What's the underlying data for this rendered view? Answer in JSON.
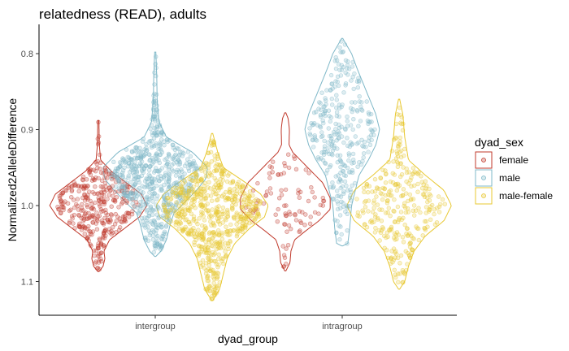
{
  "chart_data": {
    "type": "violin",
    "title": "relatedness (READ), adults",
    "xlabel": "dyad_group",
    "ylabel": "Normalized2AlleleDifference",
    "y_reversed": true,
    "ylim": [
      0.765,
      1.14
    ],
    "yticks": [
      0.8,
      0.9,
      1.0,
      1.1
    ],
    "ytick_labels": [
      "0.8",
      "0.9",
      "1.0",
      "1.1"
    ],
    "categories": [
      "intergroup",
      "intragroup"
    ],
    "grid": false,
    "legend": {
      "title": "dyad_sex",
      "position": "right",
      "entries": [
        "female",
        "male",
        "male-female"
      ]
    },
    "series": [
      {
        "name": "female",
        "color": "#C0392B",
        "groups": [
          {
            "category": "intergroup",
            "n_points": 350,
            "profile": [
              [
                0.888,
                0.3
              ],
              [
                0.92,
                0.5
              ],
              [
                0.94,
                1.2
              ],
              [
                0.955,
                7
              ],
              [
                0.97,
                15
              ],
              [
                0.985,
                23
              ],
              [
                1.0,
                26
              ],
              [
                1.015,
                22
              ],
              [
                1.03,
                14
              ],
              [
                1.045,
                6
              ],
              [
                1.06,
                3
              ],
              [
                1.07,
                3.5
              ],
              [
                1.08,
                2.5
              ],
              [
                1.087,
                0.3
              ]
            ]
          },
          {
            "category": "intragroup",
            "n_points": 90,
            "profile": [
              [
                0.878,
                0.3
              ],
              [
                0.885,
                1.5
              ],
              [
                0.9,
                2.2
              ],
              [
                0.92,
                2
              ],
              [
                0.93,
                4
              ],
              [
                0.95,
                12
              ],
              [
                0.97,
                20
              ],
              [
                0.99,
                24
              ],
              [
                1.005,
                24
              ],
              [
                1.02,
                18
              ],
              [
                1.035,
                10
              ],
              [
                1.045,
                5
              ],
              [
                1.06,
                3
              ],
              [
                1.075,
                2.5
              ],
              [
                1.086,
                0.3
              ]
            ]
          }
        ]
      },
      {
        "name": "male",
        "color": "#7FB8C8",
        "groups": [
          {
            "category": "intergroup",
            "n_points": 600,
            "profile": [
              [
                0.798,
                0.3
              ],
              [
                0.83,
                0.8
              ],
              [
                0.86,
                1
              ],
              [
                0.89,
                2
              ],
              [
                0.91,
                6
              ],
              [
                0.93,
                20
              ],
              [
                0.95,
                28
              ],
              [
                0.965,
                27
              ],
              [
                0.98,
                22
              ],
              [
                0.995,
                16
              ],
              [
                1.01,
                10
              ],
              [
                1.025,
                8
              ],
              [
                1.045,
                6
              ],
              [
                1.06,
                3
              ],
              [
                1.067,
                0.3
              ]
            ]
          },
          {
            "category": "intragroup",
            "n_points": 300,
            "profile": [
              [
                0.78,
                0.3
              ],
              [
                0.8,
                5
              ],
              [
                0.82,
                8
              ],
              [
                0.85,
                13
              ],
              [
                0.88,
                18
              ],
              [
                0.9,
                20
              ],
              [
                0.92,
                18
              ],
              [
                0.94,
                14
              ],
              [
                0.96,
                9
              ],
              [
                0.98,
                7
              ],
              [
                1.0,
                5
              ],
              [
                1.03,
                4
              ],
              [
                1.05,
                3
              ],
              [
                1.053,
                0.3
              ]
            ]
          }
        ]
      },
      {
        "name": "male-female",
        "color": "#E8C832",
        "groups": [
          {
            "category": "intergroup",
            "n_points": 650,
            "profile": [
              [
                0.905,
                0.3
              ],
              [
                0.93,
                3
              ],
              [
                0.95,
                6
              ],
              [
                0.97,
                18
              ],
              [
                0.985,
                26
              ],
              [
                1.0,
                30
              ],
              [
                1.015,
                28
              ],
              [
                1.03,
                20
              ],
              [
                1.05,
                12
              ],
              [
                1.07,
                8
              ],
              [
                1.09,
                6
              ],
              [
                1.11,
                4
              ],
              [
                1.125,
                0.3
              ]
            ]
          },
          {
            "category": "intragroup",
            "n_points": 300,
            "profile": [
              [
                0.86,
                0.3
              ],
              [
                0.88,
                2
              ],
              [
                0.91,
                3
              ],
              [
                0.94,
                5
              ],
              [
                0.96,
                14
              ],
              [
                0.98,
                24
              ],
              [
                1.0,
                28
              ],
              [
                1.02,
                24
              ],
              [
                1.04,
                14
              ],
              [
                1.06,
                8
              ],
              [
                1.08,
                5
              ],
              [
                1.1,
                3
              ],
              [
                1.11,
                0.3
              ]
            ]
          }
        ]
      }
    ]
  }
}
